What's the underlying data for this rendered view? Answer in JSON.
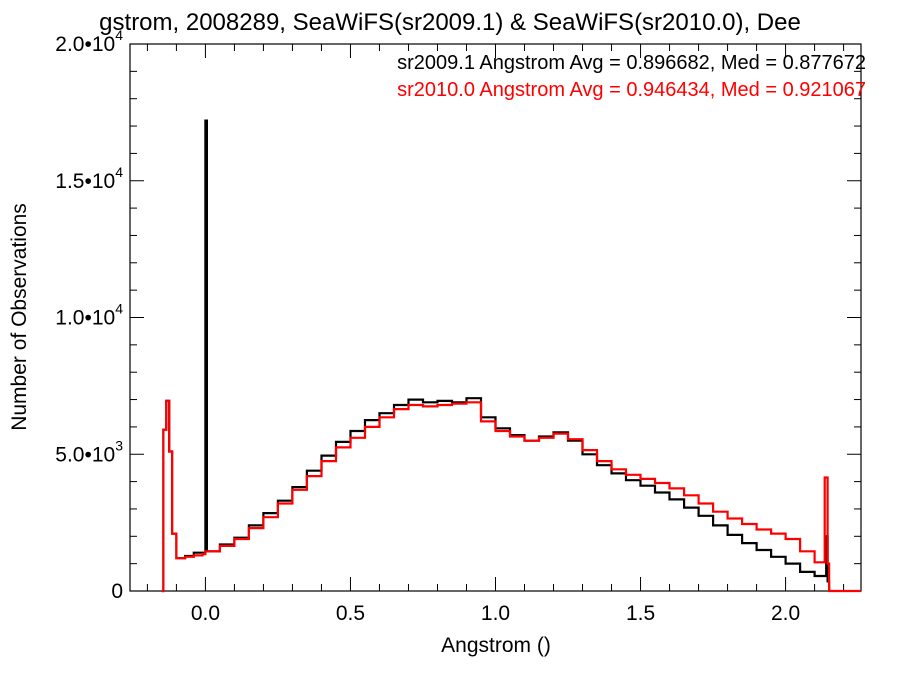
{
  "chart_data": {
    "type": "line",
    "title": "gstrom, 2008289, SeaWiFS(sr2009.1) & SeaWiFS(sr2010.0), Dee",
    "xlabel": "Angstrom ()",
    "ylabel": "Number of Observations",
    "xlim": [
      -0.26,
      2.26
    ],
    "ylim": [
      0,
      20000
    ],
    "x_ticks": [
      0.0,
      0.5,
      1.0,
      1.5,
      2.0
    ],
    "x_tick_labels": [
      "0.0",
      "0.5",
      "1.0",
      "1.5",
      "2.0"
    ],
    "y_ticks": [
      0,
      5000,
      10000,
      15000,
      20000
    ],
    "y_tick_labels": [
      {
        "mantissa": "0",
        "exponent": ""
      },
      {
        "mantissa": "5.0•10",
        "exponent": "3"
      },
      {
        "mantissa": "1.0•10",
        "exponent": "4"
      },
      {
        "mantissa": "1.5•10",
        "exponent": "4"
      },
      {
        "mantissa": "2.0•10",
        "exponent": "4"
      }
    ],
    "grid": false,
    "legend_placement": "top-right",
    "series": [
      {
        "name": "sr2009.1",
        "label": "sr2009.1 Angstrom Avg = 0.896682, Med = 0.877672",
        "color": "#000000",
        "points": [
          [
            -0.15,
            0
          ],
          [
            -0.145,
            5900
          ],
          [
            -0.135,
            6950
          ],
          [
            -0.125,
            5100
          ],
          [
            -0.115,
            2100
          ],
          [
            -0.1,
            1200
          ],
          [
            -0.07,
            1280
          ],
          [
            -0.04,
            1400
          ],
          [
            -0.01,
            1400
          ],
          [
            0.0,
            17200
          ],
          [
            0.005,
            1450
          ],
          [
            0.05,
            1700
          ],
          [
            0.1,
            1950
          ],
          [
            0.15,
            2400
          ],
          [
            0.2,
            2850
          ],
          [
            0.25,
            3300
          ],
          [
            0.3,
            3800
          ],
          [
            0.35,
            4400
          ],
          [
            0.4,
            4950
          ],
          [
            0.45,
            5450
          ],
          [
            0.5,
            5850
          ],
          [
            0.55,
            6250
          ],
          [
            0.6,
            6500
          ],
          [
            0.65,
            6800
          ],
          [
            0.7,
            7000
          ],
          [
            0.75,
            6900
          ],
          [
            0.8,
            6950
          ],
          [
            0.85,
            6900
          ],
          [
            0.9,
            7050
          ],
          [
            0.95,
            6350
          ],
          [
            1.0,
            5950
          ],
          [
            1.05,
            5700
          ],
          [
            1.1,
            5500
          ],
          [
            1.15,
            5650
          ],
          [
            1.2,
            5800
          ],
          [
            1.25,
            5500
          ],
          [
            1.3,
            5000
          ],
          [
            1.35,
            4600
          ],
          [
            1.4,
            4300
          ],
          [
            1.45,
            4050
          ],
          [
            1.5,
            3850
          ],
          [
            1.55,
            3600
          ],
          [
            1.6,
            3350
          ],
          [
            1.65,
            3050
          ],
          [
            1.7,
            2750
          ],
          [
            1.75,
            2400
          ],
          [
            1.8,
            2050
          ],
          [
            1.85,
            1750
          ],
          [
            1.9,
            1500
          ],
          [
            1.95,
            1250
          ],
          [
            2.0,
            1000
          ],
          [
            2.05,
            700
          ],
          [
            2.1,
            550
          ],
          [
            2.14,
            2000
          ],
          [
            2.145,
            350
          ],
          [
            2.15,
            0
          ]
        ]
      },
      {
        "name": "sr2010.0",
        "label": "sr2010.0 Angstrom Avg = 0.946434, Med = 0.921067",
        "color": "#ff0000",
        "points": [
          [
            -0.15,
            0
          ],
          [
            -0.145,
            5900
          ],
          [
            -0.135,
            6950
          ],
          [
            -0.125,
            5100
          ],
          [
            -0.115,
            2100
          ],
          [
            -0.1,
            1200
          ],
          [
            -0.07,
            1250
          ],
          [
            -0.04,
            1300
          ],
          [
            -0.01,
            1350
          ],
          [
            0.0,
            1450
          ],
          [
            0.05,
            1650
          ],
          [
            0.1,
            1900
          ],
          [
            0.15,
            2300
          ],
          [
            0.2,
            2700
          ],
          [
            0.25,
            3200
          ],
          [
            0.3,
            3700
          ],
          [
            0.35,
            4200
          ],
          [
            0.4,
            4750
          ],
          [
            0.45,
            5250
          ],
          [
            0.5,
            5600
          ],
          [
            0.55,
            6000
          ],
          [
            0.6,
            6350
          ],
          [
            0.65,
            6650
          ],
          [
            0.7,
            6800
          ],
          [
            0.75,
            6750
          ],
          [
            0.8,
            6800
          ],
          [
            0.85,
            6850
          ],
          [
            0.9,
            6900
          ],
          [
            0.95,
            6200
          ],
          [
            1.0,
            5850
          ],
          [
            1.05,
            5650
          ],
          [
            1.1,
            5500
          ],
          [
            1.15,
            5600
          ],
          [
            1.2,
            5750
          ],
          [
            1.25,
            5550
          ],
          [
            1.3,
            5150
          ],
          [
            1.35,
            4750
          ],
          [
            1.4,
            4450
          ],
          [
            1.45,
            4250
          ],
          [
            1.5,
            4100
          ],
          [
            1.55,
            3950
          ],
          [
            1.6,
            3750
          ],
          [
            1.65,
            3500
          ],
          [
            1.7,
            3200
          ],
          [
            1.75,
            2900
          ],
          [
            1.8,
            2650
          ],
          [
            1.85,
            2450
          ],
          [
            1.9,
            2250
          ],
          [
            1.95,
            2100
          ],
          [
            2.0,
            1900
          ],
          [
            2.05,
            1450
          ],
          [
            2.1,
            1050
          ],
          [
            2.135,
            4150
          ],
          [
            2.145,
            1000
          ],
          [
            2.15,
            0
          ],
          [
            2.26,
            0
          ]
        ]
      }
    ]
  }
}
